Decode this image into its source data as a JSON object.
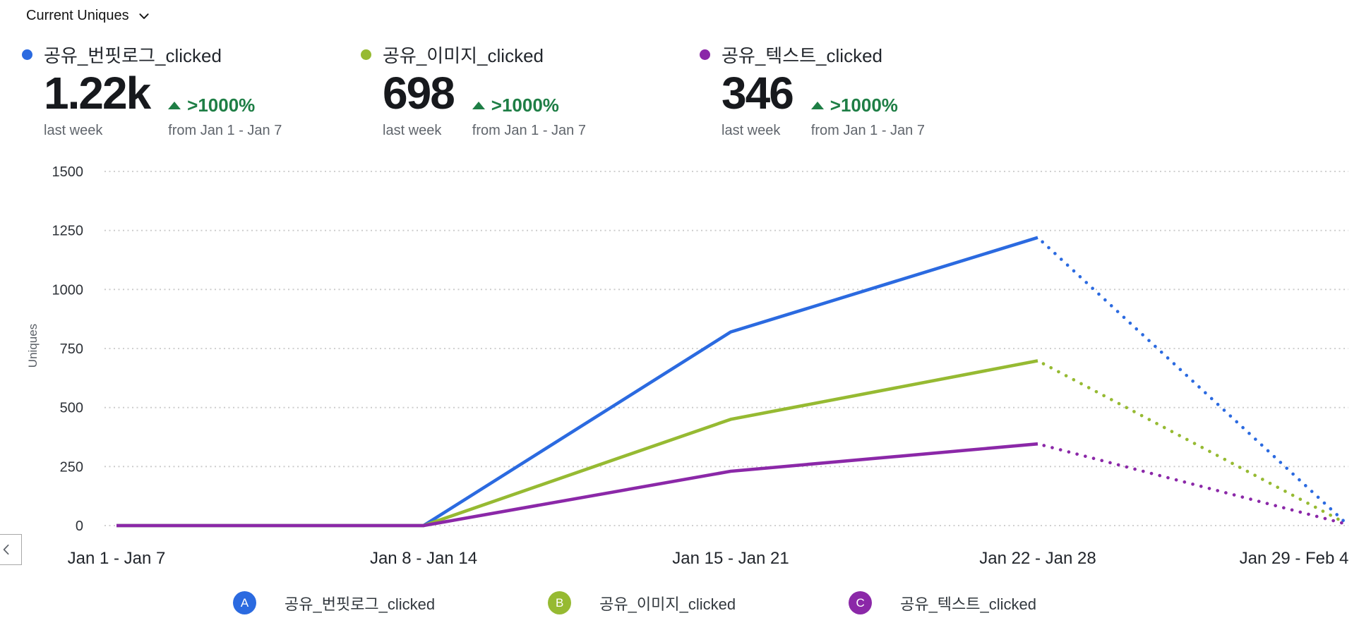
{
  "header": {
    "selector_label": "Current Uniques"
  },
  "metrics": [
    {
      "name": "공유_번핏로그_clicked",
      "color": "#2b6ae0",
      "value": "1.22k",
      "change": ">1000%",
      "period": "last week",
      "compare": "from Jan 1 - Jan 7"
    },
    {
      "name": "공유_이미지_clicked",
      "color": "#96ba32",
      "value": "698",
      "change": ">1000%",
      "period": "last week",
      "compare": "from Jan 1 - Jan 7"
    },
    {
      "name": "공유_텍스트_clicked",
      "color": "#8b28a8",
      "value": "346",
      "change": ">1000%",
      "period": "last week",
      "compare": "from Jan 1 - Jan 7"
    }
  ],
  "chart_data": {
    "type": "line",
    "title": "",
    "xlabel": "",
    "ylabel": "Uniques",
    "x_categories": [
      "Jan 1 - Jan 7",
      "Jan 8 - Jan 14",
      "Jan 15 - Jan 21",
      "Jan 22 - Jan 28",
      "Jan 29 - Feb 4"
    ],
    "y_ticks": [
      0,
      250,
      500,
      750,
      1000,
      1250,
      1500
    ],
    "ylim": [
      0,
      1500
    ],
    "grid": "horizontal-dotted",
    "legend_position": "bottom",
    "series": [
      {
        "letter": "A",
        "name": "공유_번핏로그_clicked",
        "color": "#2b6ae0",
        "values": [
          0,
          0,
          820,
          1220,
          15
        ],
        "dotted_from_index": 3
      },
      {
        "letter": "B",
        "name": "공유_이미지_clicked",
        "color": "#96ba32",
        "values": [
          0,
          0,
          450,
          698,
          12
        ],
        "dotted_from_index": 3
      },
      {
        "letter": "C",
        "name": "공유_텍스트_clicked",
        "color": "#8b28a8",
        "values": [
          0,
          0,
          230,
          346,
          8
        ],
        "dotted_from_index": 3
      }
    ]
  },
  "icons": {
    "selector": "chevron-down",
    "pagination_prev": "chevron-left",
    "trend": "triangle-up"
  },
  "colors": {
    "positive_change": "#1e7e45",
    "gridline": "#c9c9c9",
    "tick_text": "#2e3238",
    "axis_title": "#5a5f66",
    "text_primary": "#17191d",
    "text_secondary": "#60656c"
  }
}
